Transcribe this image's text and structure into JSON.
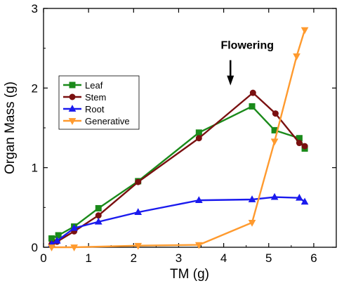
{
  "chart_data": {
    "type": "line",
    "title": "",
    "xlabel": "TM (g)",
    "ylabel": "Organ Mass (g)",
    "xlim": [
      0,
      6.5
    ],
    "ylim": [
      0,
      3
    ],
    "xticks": [
      0,
      1,
      2,
      3,
      4,
      5,
      6
    ],
    "yticks": [
      0,
      1,
      2,
      3
    ],
    "grid": false,
    "legend_position": "left-middle",
    "annotations": [
      {
        "text": "Flowering",
        "type": "arrow-down",
        "x": 4.15,
        "y": 2.05
      }
    ],
    "series": [
      {
        "name": "Leaf",
        "color": "#1a8a1a",
        "marker": "square",
        "x": [
          0.18,
          0.33,
          0.68,
          1.22,
          2.1,
          3.45,
          4.63,
          5.13,
          5.68,
          5.8
        ],
        "y": [
          0.11,
          0.15,
          0.26,
          0.49,
          0.83,
          1.44,
          1.77,
          1.47,
          1.37,
          1.24
        ]
      },
      {
        "name": "Stem",
        "color": "#7a1010",
        "marker": "circle",
        "x": [
          0.18,
          0.3,
          0.68,
          1.22,
          2.1,
          3.45,
          4.65,
          5.15,
          5.68,
          5.8
        ],
        "y": [
          0.04,
          0.07,
          0.2,
          0.4,
          0.82,
          1.37,
          1.94,
          1.68,
          1.31,
          1.27
        ]
      },
      {
        "name": "Root",
        "color": "#1a1aee",
        "marker": "triangle-up",
        "x": [
          0.18,
          0.3,
          0.68,
          1.22,
          2.1,
          3.45,
          4.63,
          5.13,
          5.68,
          5.8
        ],
        "y": [
          0.04,
          0.08,
          0.24,
          0.32,
          0.44,
          0.59,
          0.6,
          0.63,
          0.62,
          0.57
        ]
      },
      {
        "name": "Generative",
        "color": "#ff9a2e",
        "marker": "triangle-down",
        "x": [
          0.18,
          0.68,
          2.1,
          3.45,
          4.63,
          5.13,
          5.62,
          5.8
        ],
        "y": [
          0.0,
          0.0,
          0.02,
          0.03,
          0.31,
          1.33,
          2.4,
          2.73
        ]
      }
    ]
  }
}
